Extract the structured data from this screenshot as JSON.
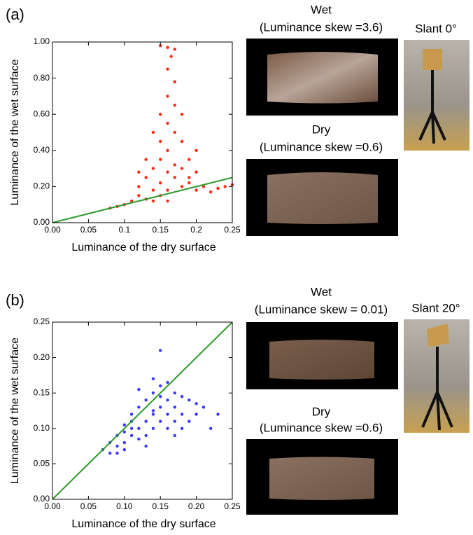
{
  "chart_data": [
    {
      "type": "scatter",
      "x_label": "Luminance of the dry surface",
      "y_label": "Luminance of the wet surface",
      "xlim": [
        0,
        0.25
      ],
      "ylim": [
        0,
        1
      ],
      "xticks": [
        {
          "value": 0,
          "label": "0.00"
        },
        0.05,
        0.1,
        0.15,
        0.2,
        0.25
      ],
      "yticks": [
        {
          "value": 0,
          "label": "0.00"
        },
        {
          "value": 0.2,
          "label": "0.20"
        },
        {
          "value": 0.4,
          "label": "0.40"
        },
        {
          "value": 0.6,
          "label": "0.60"
        },
        {
          "value": 0.8,
          "label": "0.80"
        },
        {
          "value": 1,
          "label": "1.00"
        }
      ],
      "series": [
        {
          "color": "#ff2a10",
          "x": [
            0.08,
            0.09,
            0.1,
            0.11,
            0.12,
            0.12,
            0.13,
            0.13,
            0.14,
            0.14,
            0.14,
            0.15,
            0.15,
            0.15,
            0.15,
            0.16,
            0.16,
            0.16,
            0.16,
            0.16,
            0.17,
            0.17,
            0.17,
            0.17,
            0.18,
            0.18,
            0.18,
            0.19,
            0.19,
            0.2,
            0.2,
            0.21,
            0.22,
            0.23,
            0.24,
            0.25,
            0.15,
            0.16,
            0.17,
            0.14,
            0.18,
            0.16,
            0.15,
            0.17,
            0.19,
            0.2,
            0.13,
            0.12,
            0.16,
            0.165
          ],
          "values": [
            0.08,
            0.09,
            0.1,
            0.12,
            0.15,
            0.2,
            0.13,
            0.25,
            0.18,
            0.3,
            0.12,
            0.22,
            0.35,
            0.45,
            0.15,
            0.28,
            0.4,
            0.55,
            0.7,
            0.18,
            0.25,
            0.32,
            0.5,
            0.65,
            0.2,
            0.3,
            0.45,
            0.22,
            0.35,
            0.18,
            0.28,
            0.2,
            0.17,
            0.19,
            0.2,
            0.21,
            0.6,
            0.85,
            0.78,
            0.5,
            0.6,
            0.97,
            0.98,
            0.96,
            0.25,
            0.4,
            0.35,
            0.28,
            0.12,
            0.92
          ]
        }
      ],
      "lines": [
        {
          "color": "#2e9a2e",
          "x": [
            0,
            0.25
          ],
          "values": [
            0,
            0.25
          ]
        }
      ]
    },
    {
      "type": "scatter",
      "x_label": "Luminance of the dry surface",
      "y_label": "Luminance of the wet surface",
      "xlim": [
        0,
        0.25
      ],
      "ylim": [
        0,
        0.25
      ],
      "xticks": [
        {
          "value": 0,
          "label": "0.00"
        },
        0.05,
        {
          "value": 0.1,
          "label": "0.10"
        },
        0.15,
        {
          "value": 0.2,
          "label": "0.20"
        },
        0.25
      ],
      "yticks": [
        {
          "value": 0,
          "label": "0.00"
        },
        0.05,
        {
          "value": 0.1,
          "label": "0.10"
        },
        0.15,
        {
          "value": 0.2,
          "label": "0.20"
        },
        0.25
      ],
      "series": [
        {
          "color": "#3a3aff",
          "x": [
            0.07,
            0.08,
            0.08,
            0.09,
            0.09,
            0.1,
            0.1,
            0.1,
            0.11,
            0.11,
            0.11,
            0.12,
            0.12,
            0.12,
            0.13,
            0.13,
            0.13,
            0.14,
            0.14,
            0.14,
            0.15,
            0.15,
            0.15,
            0.16,
            0.16,
            0.16,
            0.17,
            0.17,
            0.18,
            0.18,
            0.19,
            0.19,
            0.2,
            0.21,
            0.22,
            0.23,
            0.15,
            0.14,
            0.12,
            0.16,
            0.1,
            0.13,
            0.17,
            0.11,
            0.09,
            0.18,
            0.2,
            0.14,
            0.15,
            0.17
          ],
          "values": [
            0.07,
            0.065,
            0.08,
            0.075,
            0.09,
            0.08,
            0.095,
            0.105,
            0.09,
            0.11,
            0.12,
            0.085,
            0.1,
            0.13,
            0.09,
            0.11,
            0.14,
            0.1,
            0.12,
            0.15,
            0.11,
            0.13,
            0.16,
            0.1,
            0.12,
            0.14,
            0.11,
            0.13,
            0.1,
            0.12,
            0.11,
            0.14,
            0.12,
            0.13,
            0.1,
            0.12,
            0.21,
            0.17,
            0.155,
            0.165,
            0.07,
            0.075,
            0.15,
            0.1,
            0.065,
            0.145,
            0.135,
            0.125,
            0.145,
            0.09
          ]
        }
      ],
      "lines": [
        {
          "color": "#2e9a2e",
          "x": [
            0,
            0.25
          ],
          "values": [
            0,
            0.25
          ]
        }
      ]
    }
  ],
  "panels": [
    {
      "label": "(a)",
      "wet_title": "Wet",
      "wet_skew": "(Luminance skew =3.6)",
      "dry_title": "Dry",
      "dry_skew": "(Luminance skew =0.6)",
      "slant": "Slant 0°"
    },
    {
      "label": "(b)",
      "wet_title": "Wet",
      "wet_skew": "(Luminance skew = 0.01)",
      "dry_title": "Dry",
      "dry_skew": "(Luminance skew =0.6)",
      "slant": "Slant 20°"
    }
  ]
}
